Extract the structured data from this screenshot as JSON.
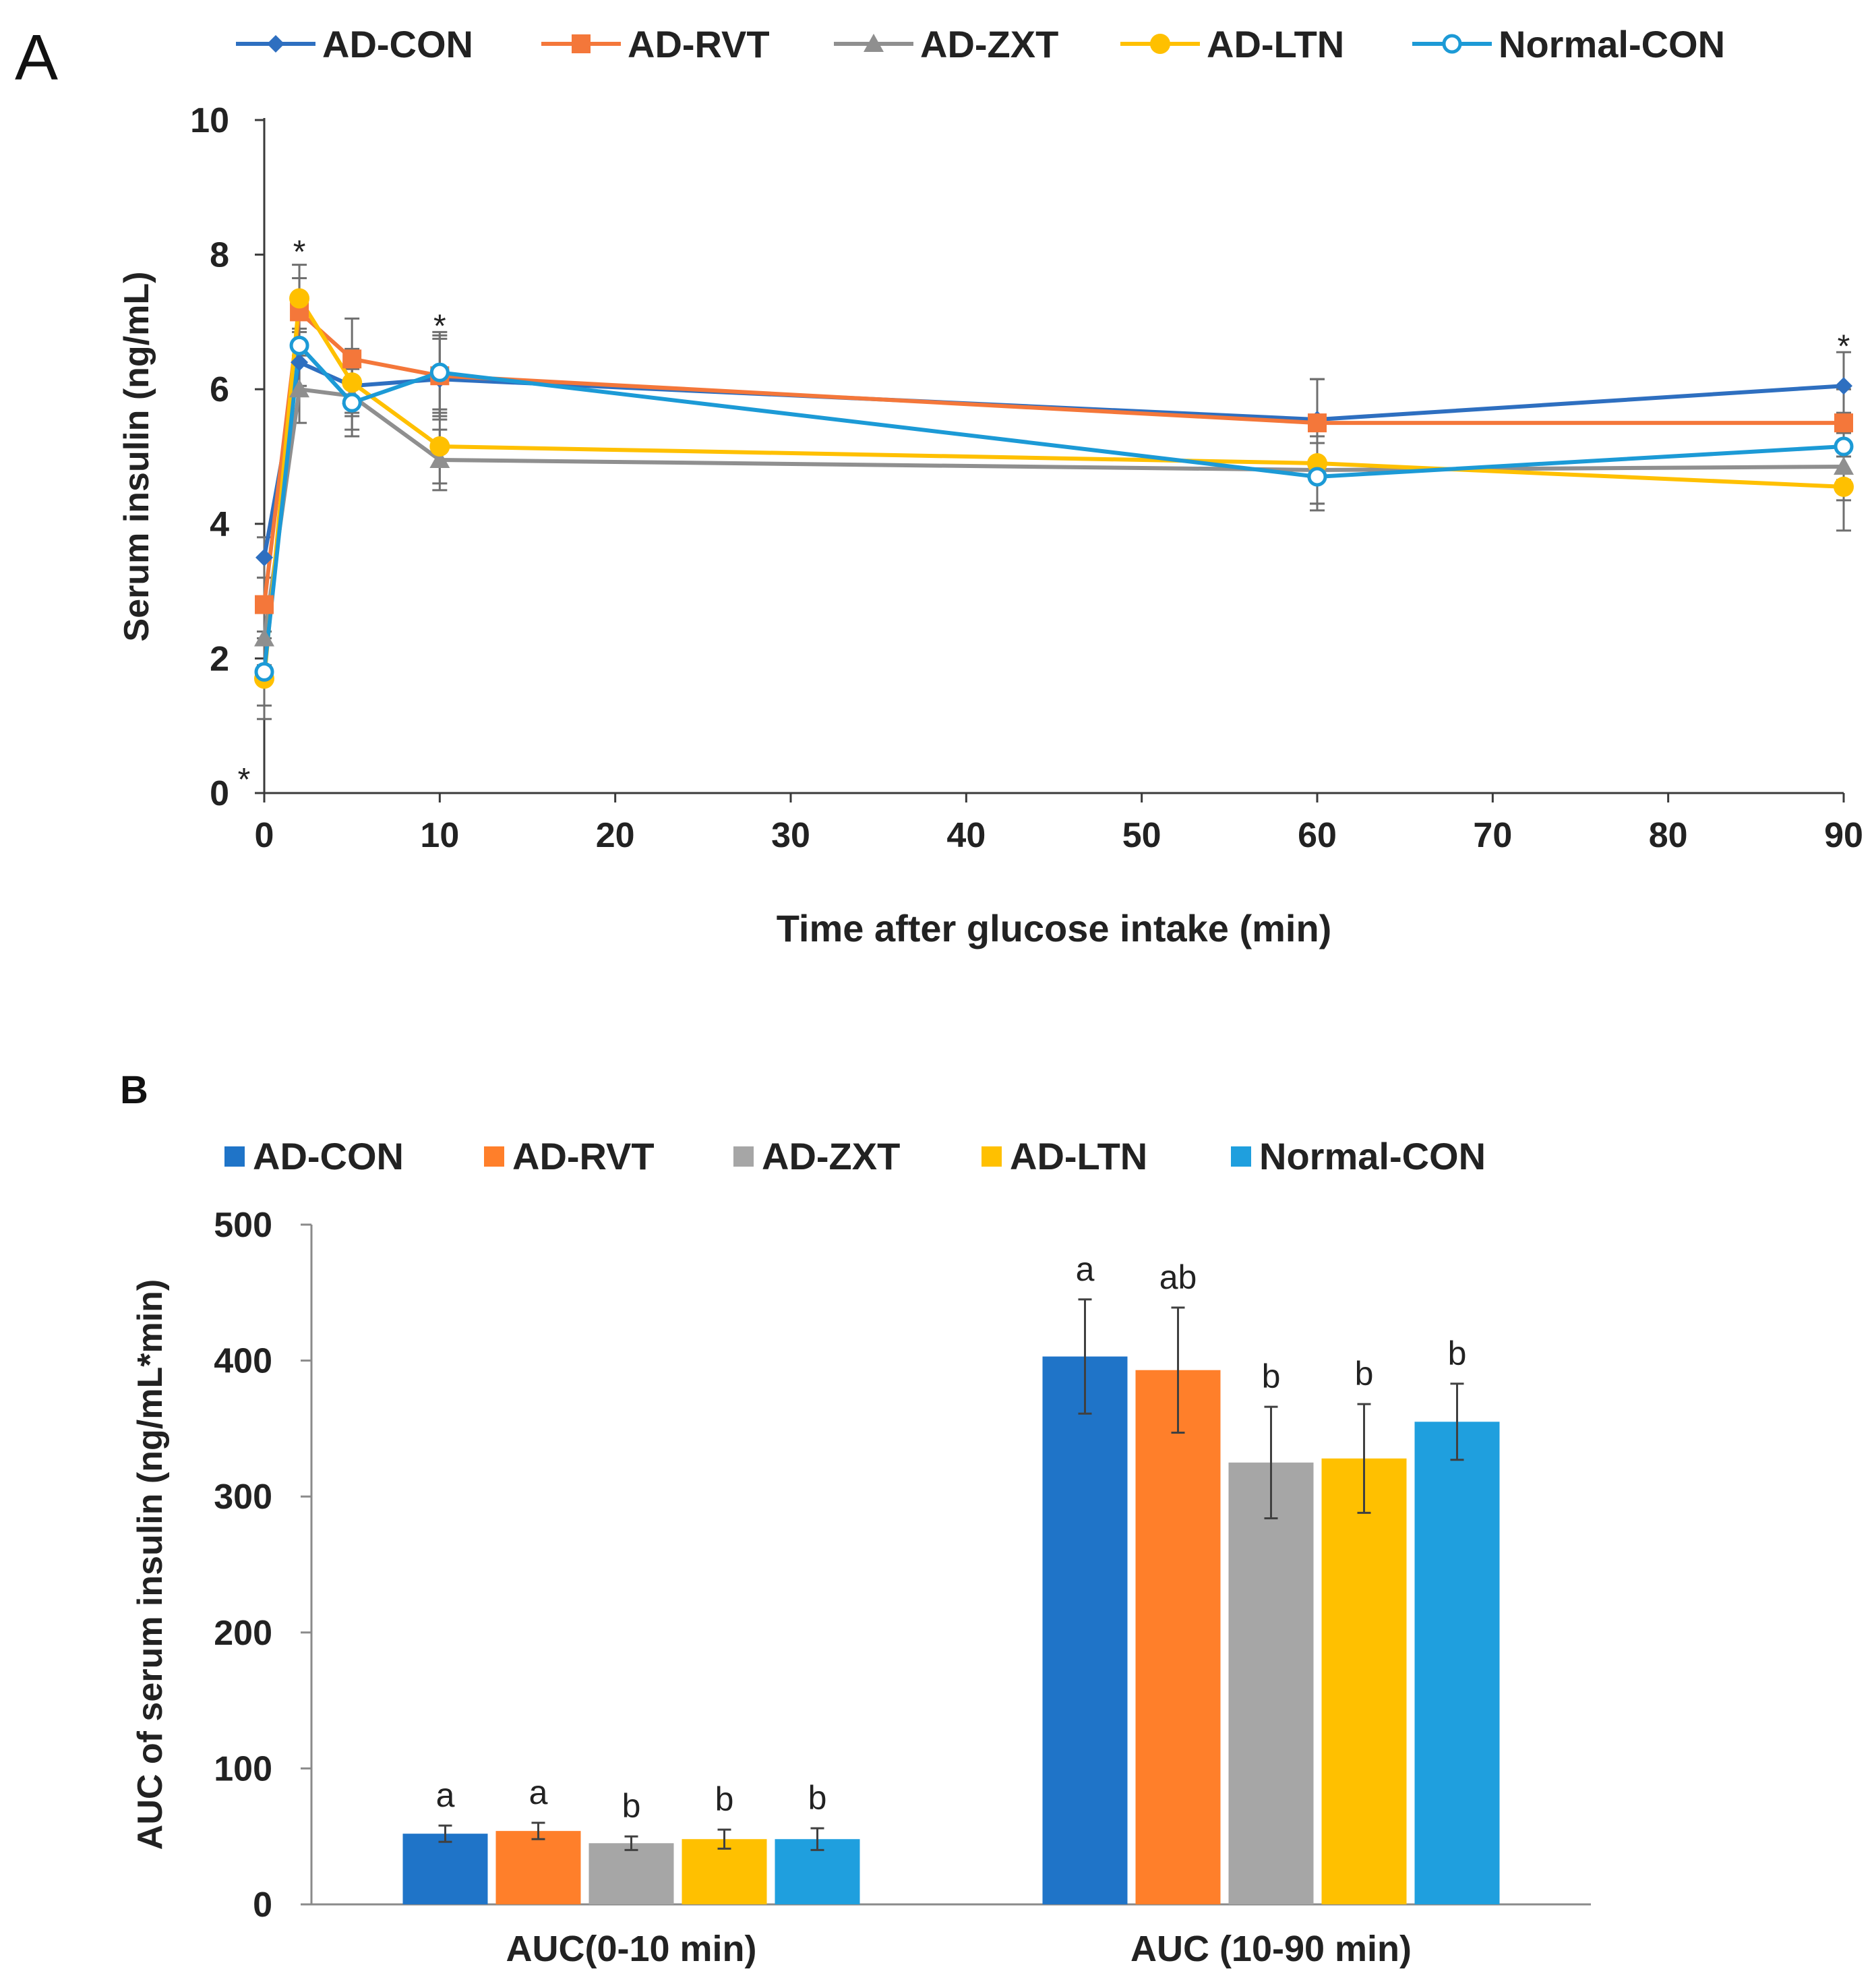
{
  "chart_data": [
    {
      "panel_label": "A",
      "type": "line",
      "title": "",
      "xlabel": "Time after glucose intake (min)",
      "ylabel": "Serum insulin (ng/mL)",
      "xlim": [
        0,
        90
      ],
      "ylim": [
        0,
        10
      ],
      "xticks": [
        0,
        10,
        20,
        30,
        40,
        50,
        60,
        70,
        80,
        90
      ],
      "yticks": [
        0,
        2,
        4,
        6,
        8,
        10
      ],
      "x": [
        0,
        2,
        5,
        10,
        60,
        90
      ],
      "series": [
        {
          "name": "AD-CON",
          "color": "#2E6FC0",
          "marker": "diamond",
          "values": [
            3.5,
            6.4,
            6.05,
            6.15,
            5.55,
            6.05
          ],
          "errors": [
            0.3,
            0.5,
            0.4,
            0.6,
            0.6,
            0.5
          ]
        },
        {
          "name": "AD-RVT",
          "color": "#F4773A",
          "marker": "square",
          "values": [
            2.8,
            7.15,
            6.45,
            6.2,
            5.5,
            5.5
          ],
          "errors": [
            0.4,
            0.5,
            0.6,
            0.6,
            0.65,
            0.5
          ]
        },
        {
          "name": "AD-ZXT",
          "color": "#8F8F8F",
          "marker": "triangle",
          "values": [
            2.3,
            6.0,
            5.9,
            4.95,
            4.8,
            4.85
          ],
          "errors": [
            0.4,
            0.5,
            0.5,
            0.45,
            0.5,
            0.5
          ]
        },
        {
          "name": "AD-LTN",
          "color": "#FFC000",
          "marker": "circle",
          "values": [
            1.7,
            7.35,
            6.1,
            5.15,
            4.9,
            4.55
          ],
          "errors": [
            0.6,
            0.5,
            0.5,
            0.55,
            0.6,
            0.65
          ]
        },
        {
          "name": "Normal-CON",
          "color": "#1C9AD6",
          "marker": "open-circle",
          "values": [
            1.8,
            6.65,
            5.8,
            6.25,
            4.7,
            5.15
          ],
          "errors": [
            0.5,
            0.6,
            0.5,
            0.6,
            0.5,
            0.5
          ]
        }
      ],
      "significance": [
        {
          "x": 0,
          "label": "*",
          "position": "below"
        },
        {
          "x": 2,
          "label": "*",
          "y": 8.1
        },
        {
          "x": 10,
          "label": "*",
          "y": 7.0
        },
        {
          "x": 90,
          "label": "*",
          "y": 6.7
        }
      ]
    },
    {
      "panel_label": "B",
      "type": "bar",
      "title": "",
      "xlabel": "",
      "ylabel": "AUC of serum insulin (ng/mL*min)",
      "ylim": [
        0,
        500
      ],
      "yticks": [
        0,
        100,
        200,
        300,
        400,
        500
      ],
      "categories": [
        "AUC(0-10 min)",
        "AUC (10-90 min)"
      ],
      "series": [
        {
          "name": "AD-CON",
          "color": "#1F74C8",
          "values": [
            52,
            403
          ],
          "errors": [
            6,
            42
          ],
          "letters": [
            "a",
            "a"
          ]
        },
        {
          "name": "AD-RVT",
          "color": "#FF7F2A",
          "values": [
            54,
            393
          ],
          "errors": [
            6,
            46
          ],
          "letters": [
            "a",
            "ab"
          ]
        },
        {
          "name": "AD-ZXT",
          "color": "#A6A6A6",
          "values": [
            45,
            325
          ],
          "errors": [
            5,
            41
          ],
          "letters": [
            "b",
            "b"
          ]
        },
        {
          "name": "AD-LTN",
          "color": "#FFC000",
          "values": [
            48,
            328
          ],
          "errors": [
            7,
            40
          ],
          "letters": [
            "b",
            "b"
          ]
        },
        {
          "name": "Normal-CON",
          "color": "#1F9FDE",
          "values": [
            48,
            355
          ],
          "errors": [
            8,
            28
          ],
          "letters": [
            "b",
            "b"
          ]
        }
      ]
    }
  ]
}
